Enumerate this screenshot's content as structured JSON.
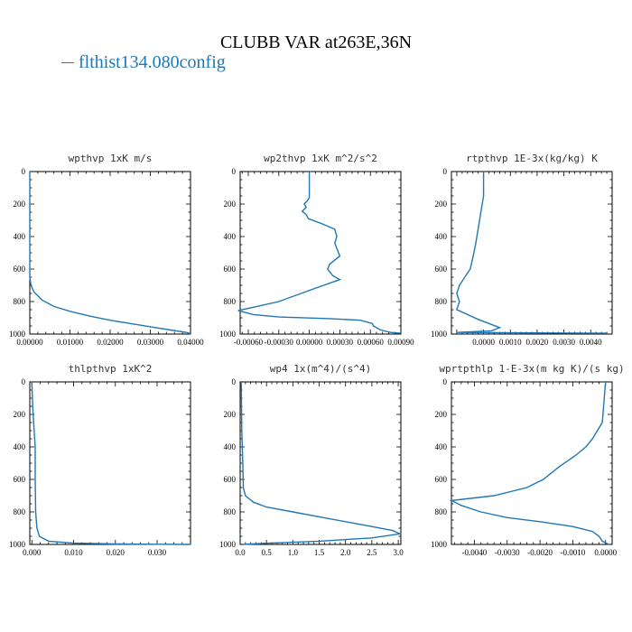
{
  "title": "CLUBB VAR at263E,36N",
  "legend": {
    "label": "flthist134.080config",
    "color": "#1f77b4"
  },
  "chart_data": [
    {
      "type": "line",
      "title": "wpthvp  1xK m/s",
      "xlim": [
        0,
        0.04
      ],
      "ylim": [
        1000,
        0
      ],
      "xticks": [
        0,
        0.01,
        0.02,
        0.03,
        0.04
      ],
      "xtick_labels": [
        "0.00000",
        "0.01000",
        "0.02000",
        "0.03000",
        "0.04000"
      ],
      "yticks": [
        0,
        200,
        400,
        600,
        800,
        1000
      ],
      "ytick_labels": [
        "0",
        "200",
        "400",
        "600",
        "800",
        "1000"
      ],
      "series": [
        {
          "points": [
            [
              0,
              0
            ],
            [
              0,
              100
            ],
            [
              0,
              300
            ],
            [
              0,
              500
            ],
            [
              0,
              650
            ],
            [
              0.0003,
              700
            ],
            [
              0.001,
              740
            ],
            [
              0.003,
              790
            ],
            [
              0.006,
              830
            ],
            [
              0.01,
              860
            ],
            [
              0.015,
              890
            ],
            [
              0.02,
              915
            ],
            [
              0.025,
              935
            ],
            [
              0.03,
              955
            ],
            [
              0.035,
              975
            ],
            [
              0.039,
              990
            ],
            [
              0.04,
              997
            ]
          ]
        }
      ]
    },
    {
      "type": "line",
      "title": "wp2thvp  1xK m^2/s^2",
      "xlim": [
        -0.00068,
        0.0009
      ],
      "ylim": [
        1000,
        0
      ],
      "xticks": [
        -0.0006,
        -0.0003,
        0,
        0.0003,
        0.0006,
        0.0009
      ],
      "xtick_labels": [
        "-0.00060",
        "-0.00030",
        "0.00000",
        "0.00030",
        "0.00060",
        "0.00090"
      ],
      "yticks": [
        0,
        200,
        400,
        600,
        800,
        1000
      ],
      "ytick_labels": [
        "0",
        "200",
        "400",
        "600",
        "800",
        "1000"
      ],
      "series": [
        {
          "points": [
            [
              0,
              0
            ],
            [
              0,
              160
            ],
            [
              -2e-05,
              180
            ],
            [
              -5e-05,
              200
            ],
            [
              -3e-05,
              220
            ],
            [
              -7e-05,
              245
            ],
            [
              -3e-05,
              265
            ],
            [
              -1e-05,
              290
            ],
            [
              0.00012,
              320
            ],
            [
              0.00025,
              355
            ],
            [
              0.00027,
              400
            ],
            [
              0.00025,
              440
            ],
            [
              0.00028,
              490
            ],
            [
              0.0003,
              520
            ],
            [
              0.0002,
              570
            ],
            [
              0.00018,
              600
            ],
            [
              0.00023,
              640
            ],
            [
              0.0003,
              665
            ],
            [
              5e-05,
              720
            ],
            [
              -0.0003,
              800
            ],
            [
              -0.00055,
              835
            ],
            [
              -0.0007,
              855
            ],
            [
              -0.00055,
              880
            ],
            [
              -0.0003,
              895
            ],
            [
              0.0002,
              905
            ],
            [
              0.0005,
              915
            ],
            [
              0.00062,
              935
            ],
            [
              0.00063,
              950
            ],
            [
              0.0007,
              975
            ],
            [
              0.0008,
              990
            ],
            [
              0.0009,
              995
            ]
          ]
        }
      ]
    },
    {
      "type": "line",
      "title": "rtpthvp  1E-3x(kg/kg) K",
      "xlim": [
        -0.0012,
        0.0048
      ],
      "ylim": [
        1000,
        0
      ],
      "xticks": [
        0,
        0.001,
        0.002,
        0.003,
        0.004
      ],
      "xtick_labels": [
        "0.0000",
        "0.0010",
        "0.0020",
        "0.0030",
        "0.0040"
      ],
      "yticks": [
        0,
        200,
        400,
        600,
        800,
        1000
      ],
      "ytick_labels": [
        "0",
        "200",
        "400",
        "600",
        "800",
        "1000"
      ],
      "series": [
        {
          "points": [
            [
              0,
              0
            ],
            [
              0,
              150
            ],
            [
              -0.0001,
              250
            ],
            [
              -0.0002,
              350
            ],
            [
              -0.0003,
              450
            ],
            [
              -0.0004,
              530
            ],
            [
              -0.0005,
              600
            ],
            [
              -0.0007,
              650
            ],
            [
              -0.0009,
              700
            ],
            [
              -0.001,
              750
            ],
            [
              -0.0009,
              800
            ],
            [
              -0.001,
              850
            ],
            [
              -0.0006,
              880
            ],
            [
              -0.0002,
              910
            ],
            [
              0.0002,
              935
            ],
            [
              0.0006,
              960
            ],
            [
              0.0003,
              980
            ],
            [
              -0.001,
              990
            ],
            [
              0.0046,
              995
            ]
          ]
        }
      ]
    },
    {
      "type": "line",
      "title": "thlpthvp  1xK^2",
      "xlim": [
        -0.0005,
        0.038
      ],
      "ylim": [
        1000,
        0
      ],
      "xticks": [
        0,
        0.01,
        0.02,
        0.03
      ],
      "xtick_labels": [
        "0.000",
        "0.010",
        "0.020",
        "0.030"
      ],
      "yticks": [
        0,
        200,
        400,
        600,
        800,
        1000
      ],
      "ytick_labels": [
        "0",
        "200",
        "400",
        "600",
        "800",
        "1000"
      ],
      "series": [
        {
          "points": [
            [
              0,
              0
            ],
            [
              0.0002,
              150
            ],
            [
              0.0005,
              280
            ],
            [
              0.0008,
              400
            ],
            [
              0.0008,
              600
            ],
            [
              0.0009,
              800
            ],
            [
              0.0012,
              900
            ],
            [
              0.0018,
              950
            ],
            [
              0.004,
              980
            ],
            [
              0.01,
              992
            ],
            [
              0.02,
              997
            ],
            [
              0.03,
              999
            ],
            [
              0.038,
              1000
            ]
          ]
        }
      ]
    },
    {
      "type": "line",
      "title": "wp4  1x(m^4)/(s^4)",
      "xlim": [
        0,
        3.05
      ],
      "ylim": [
        1000,
        0
      ],
      "xticks": [
        0,
        0.5,
        1.0,
        1.5,
        2.0,
        2.5,
        3.0
      ],
      "xtick_labels": [
        "0.0",
        "0.5",
        "1.0",
        "1.5",
        "2.0",
        "2.5",
        "3.0"
      ],
      "yticks": [
        0,
        200,
        400,
        600,
        800,
        1000
      ],
      "ytick_labels": [
        "0",
        "200",
        "400",
        "600",
        "800",
        "1000"
      ],
      "series": [
        {
          "points": [
            [
              0.02,
              0
            ],
            [
              0.03,
              300
            ],
            [
              0.05,
              500
            ],
            [
              0.06,
              650
            ],
            [
              0.1,
              700
            ],
            [
              0.25,
              740
            ],
            [
              0.5,
              770
            ],
            [
              1.0,
              800
            ],
            [
              1.5,
              830
            ],
            [
              2.0,
              860
            ],
            [
              2.5,
              890
            ],
            [
              2.9,
              915
            ],
            [
              3.03,
              935
            ],
            [
              2.5,
              960
            ],
            [
              1.5,
              980
            ],
            [
              0.5,
              993
            ],
            [
              0.05,
              1000
            ]
          ]
        }
      ]
    },
    {
      "type": "line",
      "title": "wprtpthlp  1-E-3x(m kg K)/(s kg)",
      "xlim": [
        -0.0047,
        0.0002
      ],
      "ylim": [
        1000,
        0
      ],
      "xticks": [
        -0.004,
        -0.003,
        -0.002,
        -0.001,
        0
      ],
      "xtick_labels": [
        "-0.0040",
        "-0.0030",
        "-0.0020",
        "-0.0010",
        "0.0000"
      ],
      "yticks": [
        0,
        200,
        400,
        600,
        800,
        1000
      ],
      "ytick_labels": [
        "0",
        "200",
        "400",
        "600",
        "800",
        "1000"
      ],
      "series": [
        {
          "points": [
            [
              0,
              0
            ],
            [
              -0.0001,
              250
            ],
            [
              -0.0004,
              350
            ],
            [
              -0.0006,
              400
            ],
            [
              -0.0009,
              450
            ],
            [
              -0.0014,
              520
            ],
            [
              -0.0019,
              600
            ],
            [
              -0.0024,
              650
            ],
            [
              -0.0034,
              700
            ],
            [
              -0.0047,
              730
            ],
            [
              -0.0044,
              760
            ],
            [
              -0.0038,
              800
            ],
            [
              -0.003,
              835
            ],
            [
              -0.002,
              860
            ],
            [
              -0.001,
              890
            ],
            [
              -0.0004,
              920
            ],
            [
              -0.0002,
              950
            ],
            [
              -0.0001,
              980
            ],
            [
              0,
              990
            ],
            [
              0.0001,
              1000
            ]
          ]
        }
      ]
    }
  ]
}
